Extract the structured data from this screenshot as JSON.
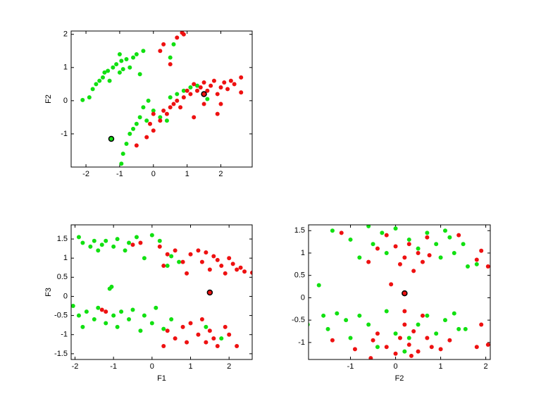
{
  "chart_data": [
    {
      "type": "scatter",
      "ylabel": "F2",
      "xlim": [
        -2.44,
        2.93
      ],
      "ylim": [
        -2.0,
        2.1
      ],
      "xticks": [
        -2,
        -1,
        0,
        1,
        2
      ],
      "yticks": [
        -1,
        0,
        1,
        2
      ],
      "series": [
        {
          "color": "#11e011",
          "x": [
            -2.1,
            -1.9,
            -1.8,
            -1.7,
            -1.6,
            -1.5,
            -1.45,
            -1.35,
            -1.3,
            -1.2,
            -1.1,
            -1.0,
            -0.95,
            -0.9,
            -0.8,
            -0.7,
            -0.6,
            -0.5,
            -0.4,
            -0.3,
            -1.0,
            -0.95,
            -0.9,
            -0.8,
            -0.7,
            -0.6,
            -0.5,
            -0.4,
            -0.3,
            -0.2,
            0.0,
            0.2,
            0.4,
            0.5,
            0.7,
            0.9,
            1.1,
            1.3,
            1.6,
            0.5,
            0.6,
            -0.15
          ],
          "y": [
            0.02,
            0.1,
            0.35,
            0.5,
            0.6,
            0.7,
            0.85,
            0.9,
            0.6,
            1.0,
            1.1,
            0.85,
            1.2,
            0.95,
            1.25,
            1.0,
            1.3,
            1.4,
            0.8,
            1.5,
            1.4,
            -1.9,
            -1.6,
            -1.3,
            -1.0,
            -0.85,
            -0.7,
            -0.5,
            -0.2,
            -0.6,
            -0.3,
            -0.5,
            -0.6,
            0.1,
            0.2,
            0.3,
            0.4,
            0.45,
            0.05,
            1.3,
            1.7,
            0.0
          ]
        },
        {
          "color": "#ee1111",
          "x": [
            -0.5,
            -0.2,
            0.0,
            0.2,
            0.3,
            0.4,
            0.5,
            0.6,
            0.7,
            0.8,
            0.9,
            1.0,
            1.1,
            1.2,
            1.3,
            1.4,
            1.5,
            1.6,
            1.7,
            1.8,
            1.9,
            2.0,
            2.1,
            2.2,
            2.3,
            2.4,
            2.6,
            2.6,
            1.9,
            2.0,
            1.2,
            0.2,
            0.3,
            0.5,
            0.7,
            0.85,
            0.9,
            0.0,
            -0.1,
            1.5
          ],
          "y": [
            -1.35,
            -1.1,
            -0.9,
            -0.6,
            -0.3,
            -0.4,
            -0.2,
            -0.1,
            0.0,
            -0.2,
            0.1,
            0.3,
            0.2,
            0.5,
            0.3,
            0.4,
            0.55,
            0.3,
            0.45,
            0.6,
            0.2,
            0.4,
            0.55,
            0.35,
            0.6,
            0.5,
            0.7,
            0.25,
            -0.4,
            -0.1,
            -0.5,
            1.5,
            1.7,
            1.1,
            1.9,
            2.05,
            2.0,
            -0.4,
            -0.7,
            -0.1
          ]
        },
        {
          "color": "#11e011",
          "edgecolor": "#000000",
          "x": [
            -1.25
          ],
          "y": [
            -1.15
          ]
        },
        {
          "color": "#ee1111",
          "edgecolor": "#000000",
          "x": [
            1.5
          ],
          "y": [
            0.2
          ]
        }
      ]
    },
    {
      "type": "scatter",
      "xlabel": "F1",
      "ylabel": "F3",
      "xlim": [
        -2.1,
        2.6
      ],
      "ylim": [
        -1.65,
        1.87
      ],
      "xticks": [
        -2,
        -1,
        0,
        1,
        2
      ],
      "yticks": [
        -1.5,
        -1,
        -0.5,
        0,
        0.5,
        1,
        1.5
      ],
      "series": [
        {
          "color": "#11e011",
          "x": [
            -1.9,
            -1.8,
            -1.6,
            -1.5,
            -1.4,
            -1.3,
            -1.2,
            -1.0,
            -0.9,
            -0.7,
            -0.6,
            -0.4,
            -0.2,
            0.0,
            0.2,
            0.4,
            0.5,
            0.7,
            -1.1,
            -1.05,
            -2.05,
            -1.9,
            -1.8,
            -1.7,
            -1.5,
            -1.4,
            -1.2,
            -1.0,
            -0.9,
            -0.8,
            -0.6,
            -0.5,
            -0.3,
            -0.2,
            0.0,
            0.1,
            0.3,
            0.5,
            1.4,
            1.8
          ],
          "y": [
            1.55,
            1.4,
            1.3,
            1.45,
            1.2,
            1.35,
            1.45,
            1.3,
            1.5,
            1.2,
            1.4,
            1.55,
            1.0,
            1.6,
            1.45,
            0.8,
            1.05,
            0.9,
            0.2,
            0.25,
            -0.25,
            -0.5,
            -0.8,
            -0.4,
            -0.6,
            -0.3,
            -0.7,
            -0.5,
            -0.8,
            -0.4,
            -0.6,
            -0.35,
            -0.9,
            -0.5,
            -0.7,
            -0.3,
            -0.85,
            -0.6,
            -0.8,
            -1.1
          ]
        },
        {
          "color": "#ee1111",
          "x": [
            -0.5,
            -0.3,
            0.2,
            0.3,
            0.4,
            0.6,
            0.8,
            1.0,
            1.2,
            1.3,
            1.4,
            1.5,
            1.6,
            1.7,
            1.8,
            1.9,
            2.0,
            2.1,
            2.2,
            2.3,
            2.4,
            2.6,
            0.9,
            -1.3,
            -1.2,
            0.3,
            0.4,
            0.6,
            0.8,
            0.9,
            1.0,
            1.2,
            1.3,
            1.4,
            1.5,
            1.6,
            1.7,
            1.9,
            2.0,
            2.2
          ],
          "y": [
            1.35,
            1.4,
            1.3,
            0.8,
            1.1,
            1.2,
            0.9,
            1.1,
            1.2,
            0.9,
            1.15,
            0.7,
            1.05,
            0.95,
            0.8,
            0.6,
            1.0,
            0.85,
            0.7,
            0.75,
            0.65,
            0.62,
            0.6,
            -0.35,
            -0.4,
            -1.3,
            -0.9,
            -1.1,
            -0.8,
            -1.2,
            -0.7,
            -1.0,
            -0.6,
            -1.2,
            -0.9,
            -1.1,
            -1.3,
            -0.8,
            -1.0,
            -1.3
          ]
        },
        {
          "color": "#ee1111",
          "edgecolor": "#000000",
          "x": [
            1.5
          ],
          "y": [
            0.1
          ]
        }
      ]
    },
    {
      "type": "scatter",
      "xlabel": "F2",
      "xlim": [
        -1.93,
        2.1
      ],
      "ylim": [
        -1.38,
        1.63
      ],
      "xticks": [
        -1,
        0,
        1,
        2
      ],
      "yticks": [
        -1,
        -0.5,
        0,
        0.5,
        1,
        1.5
      ],
      "series": [
        {
          "color": "#11e011",
          "x": [
            -1.4,
            -1.0,
            -0.8,
            -0.6,
            -0.5,
            -0.3,
            -0.2,
            0.0,
            0.3,
            0.5,
            0.7,
            0.9,
            1.0,
            1.1,
            1.2,
            1.3,
            1.5,
            1.6,
            1.8,
            -1.7,
            -1.95,
            -1.6,
            -1.5,
            -1.3,
            -1.1,
            -1.0,
            -0.8,
            -0.6,
            -0.4,
            -0.2,
            0.0,
            0.2,
            0.5,
            0.7,
            0.9,
            1.1,
            1.3,
            1.4,
            1.55,
            0.3
          ],
          "y": [
            1.5,
            1.3,
            0.9,
            1.6,
            1.2,
            1.45,
            1.0,
            1.55,
            1.3,
            1.1,
            1.45,
            1.2,
            0.9,
            1.5,
            1.35,
            1.0,
            1.2,
            0.7,
            0.75,
            0.28,
            -0.6,
            -0.4,
            -0.7,
            -0.35,
            -0.5,
            -0.9,
            -0.4,
            -0.6,
            -1.1,
            -0.3,
            -0.8,
            -1.2,
            -0.6,
            -0.4,
            -0.8,
            -0.5,
            -0.35,
            -0.7,
            -0.7,
            -0.9
          ]
        },
        {
          "color": "#ee1111",
          "x": [
            -1.2,
            -0.6,
            -0.4,
            -0.2,
            0.0,
            0.1,
            0.2,
            0.3,
            0.4,
            0.5,
            0.6,
            0.7,
            0.75,
            1.4,
            1.9,
            1.8,
            2.05,
            -0.1,
            -1.4,
            -0.9,
            -0.55,
            -0.4,
            -0.2,
            0.0,
            0.1,
            0.2,
            0.3,
            0.4,
            0.5,
            0.6,
            0.7,
            0.8,
            1.2,
            1.8,
            1.9,
            2.05,
            -0.5,
            0.2,
            1.0,
            0.35
          ],
          "y": [
            1.45,
            0.8,
            1.1,
            1.4,
            1.15,
            0.75,
            0.9,
            1.2,
            0.6,
            1.0,
            0.8,
            1.35,
            0.95,
            1.4,
            1.05,
            0.85,
            0.7,
            0.3,
            -0.95,
            -1.15,
            -1.35,
            -0.8,
            -1.1,
            -1.25,
            -0.9,
            -0.6,
            -1.05,
            -0.75,
            -1.2,
            -0.4,
            -0.9,
            -1.1,
            -0.95,
            -1.1,
            -0.6,
            -1.05,
            -0.95,
            -0.3,
            -1.15,
            -1.3
          ]
        },
        {
          "color": "#ee1111",
          "edgecolor": "#000000",
          "x": [
            0.2
          ],
          "y": [
            0.1
          ]
        }
      ]
    }
  ]
}
